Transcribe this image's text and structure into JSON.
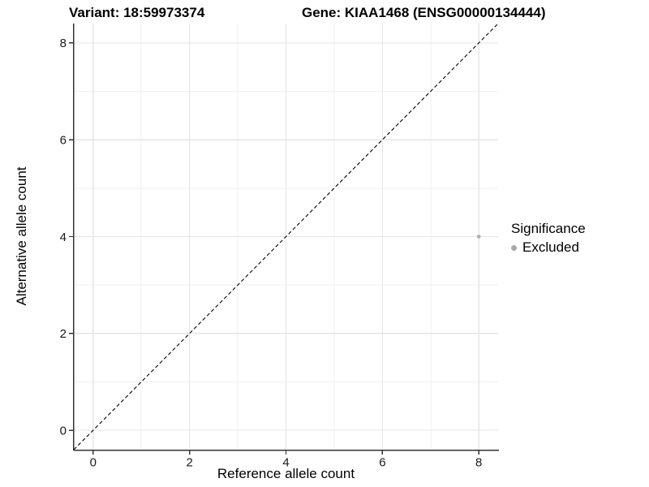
{
  "chart_data": {
    "type": "scatter",
    "title_left": "Variant: 18:59973374",
    "title_right": "Gene: KIAA1468 (ENSG00000134444)",
    "xlabel": "Reference allele count",
    "ylabel": "Alternative allele count",
    "xlim": [
      -0.4,
      8.4
    ],
    "ylim": [
      -0.4,
      8.4
    ],
    "xticks": [
      0,
      2,
      4,
      6,
      8
    ],
    "yticks": [
      0,
      2,
      4,
      6,
      8
    ],
    "xticks_minor": [
      1,
      3,
      5,
      7
    ],
    "yticks_minor": [
      1,
      3,
      5,
      7
    ],
    "grid": "on",
    "legend_position": "right",
    "reference_line": {
      "type": "identity",
      "style": "dashed",
      "color": "#000000",
      "from": -0.4,
      "to": 8.4
    },
    "series": [
      {
        "name": "Excluded",
        "color": "#adadad",
        "marker": "circle",
        "points": [
          {
            "x": 8,
            "y": 4
          }
        ]
      }
    ],
    "legend": {
      "title": "Significance",
      "entries": [
        {
          "label": "Excluded",
          "color": "#a9a9a9"
        }
      ]
    }
  },
  "style": {
    "background": "#ffffff",
    "grid_major_color": "#e5e5e5",
    "grid_minor_color": "#efefef",
    "axis_line_color": "#333333",
    "tick_color": "#333333",
    "tick_label_color": "#1a1a1a",
    "dashed_line_color": "#000000"
  }
}
